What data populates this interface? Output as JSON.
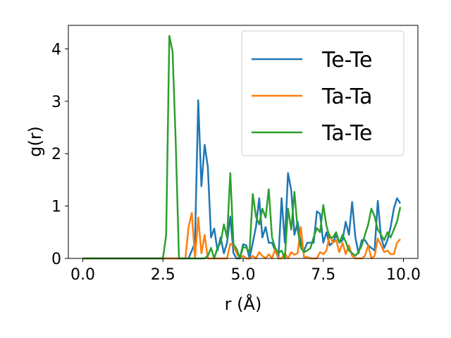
{
  "chart_data": {
    "type": "line",
    "xlabel": "r (Å)",
    "ylabel": "g(r)",
    "xlim": [
      -0.45,
      10.45
    ],
    "ylim": [
      0,
      4.45
    ],
    "xticks": [
      "0.0",
      "2.5",
      "5.0",
      "7.5",
      "10.0"
    ],
    "yticks": [
      "0",
      "1",
      "2",
      "3",
      "4"
    ],
    "grid": false,
    "legend_position": "top-right",
    "series": [
      {
        "name": "Te-Te",
        "color": "#1f77b4",
        "points": [
          [
            0,
            0
          ],
          [
            2.5,
            0
          ],
          [
            3.3,
            0
          ],
          [
            3.5,
            0.3
          ],
          [
            3.6,
            3.02
          ],
          [
            3.7,
            1.38
          ],
          [
            3.8,
            2.17
          ],
          [
            3.9,
            1.75
          ],
          [
            4.0,
            0.4
          ],
          [
            4.1,
            0.57
          ],
          [
            4.2,
            0.15
          ],
          [
            4.3,
            0.4
          ],
          [
            4.4,
            0.1
          ],
          [
            4.5,
            0.3
          ],
          [
            4.6,
            0.8
          ],
          [
            4.7,
            0.1
          ],
          [
            4.8,
            0
          ],
          [
            4.9,
            0
          ],
          [
            5.0,
            0.27
          ],
          [
            5.1,
            0.25
          ],
          [
            5.2,
            0
          ],
          [
            5.3,
            0.3
          ],
          [
            5.4,
            0.6
          ],
          [
            5.5,
            1.15
          ],
          [
            5.6,
            0.4
          ],
          [
            5.7,
            0.6
          ],
          [
            5.8,
            0.3
          ],
          [
            5.9,
            0.3
          ],
          [
            6.0,
            0.15
          ],
          [
            6.1,
            0
          ],
          [
            6.2,
            1.15
          ],
          [
            6.3,
            0.3
          ],
          [
            6.4,
            1.63
          ],
          [
            6.5,
            1.3
          ],
          [
            6.6,
            0.45
          ],
          [
            6.7,
            0.7
          ],
          [
            6.8,
            0.3
          ],
          [
            6.9,
            0.15
          ],
          [
            7.0,
            0.3
          ],
          [
            7.1,
            0.3
          ],
          [
            7.2,
            0.3
          ],
          [
            7.3,
            0.9
          ],
          [
            7.4,
            0.85
          ],
          [
            7.5,
            0.3
          ],
          [
            7.6,
            0.5
          ],
          [
            7.7,
            0.25
          ],
          [
            7.8,
            0.3
          ],
          [
            7.9,
            0.45
          ],
          [
            8.0,
            0.3
          ],
          [
            8.1,
            0.35
          ],
          [
            8.2,
            0.7
          ],
          [
            8.3,
            0.45
          ],
          [
            8.4,
            1.08
          ],
          [
            8.5,
            0.4
          ],
          [
            8.6,
            0.1
          ],
          [
            8.7,
            0.35
          ],
          [
            8.8,
            0.35
          ],
          [
            8.9,
            0.25
          ],
          [
            9.0,
            0.2
          ],
          [
            9.1,
            0.15
          ],
          [
            9.2,
            1.1
          ],
          [
            9.3,
            0.4
          ],
          [
            9.4,
            0.2
          ],
          [
            9.5,
            0.35
          ],
          [
            9.6,
            0.6
          ],
          [
            9.7,
            0.95
          ],
          [
            9.8,
            1.15
          ],
          [
            9.9,
            1.05
          ]
        ]
      },
      {
        "name": "Ta-Ta",
        "color": "#ff7f0e",
        "points": [
          [
            0,
            0
          ],
          [
            3.0,
            0
          ],
          [
            3.2,
            0
          ],
          [
            3.3,
            0.6
          ],
          [
            3.4,
            0.87
          ],
          [
            3.5,
            0
          ],
          [
            3.6,
            0.78
          ],
          [
            3.7,
            0.1
          ],
          [
            3.8,
            0.45
          ],
          [
            3.9,
            0
          ],
          [
            4.0,
            0
          ],
          [
            4.5,
            0
          ],
          [
            4.6,
            0.28
          ],
          [
            4.7,
            0.25
          ],
          [
            4.8,
            0.1
          ],
          [
            4.9,
            0
          ],
          [
            5.0,
            0.05
          ],
          [
            5.1,
            0
          ],
          [
            5.2,
            0
          ],
          [
            5.3,
            0.05
          ],
          [
            5.4,
            0
          ],
          [
            5.5,
            0.12
          ],
          [
            5.6,
            0.05
          ],
          [
            5.7,
            0
          ],
          [
            5.8,
            0.08
          ],
          [
            5.9,
            0
          ],
          [
            6.0,
            0.18
          ],
          [
            6.1,
            0
          ],
          [
            6.2,
            0
          ],
          [
            6.3,
            0.1
          ],
          [
            6.4,
            0
          ],
          [
            6.5,
            0.12
          ],
          [
            6.6,
            0.07
          ],
          [
            6.7,
            0.1
          ],
          [
            6.8,
            0.6
          ],
          [
            6.9,
            0.02
          ],
          [
            7.0,
            0.03
          ],
          [
            7.1,
            0
          ],
          [
            7.3,
            0
          ],
          [
            7.4,
            0.12
          ],
          [
            7.5,
            0.08
          ],
          [
            7.6,
            0.15
          ],
          [
            7.7,
            0.45
          ],
          [
            7.8,
            0.3
          ],
          [
            7.9,
            0.35
          ],
          [
            8.0,
            0.12
          ],
          [
            8.1,
            0.3
          ],
          [
            8.2,
            0.08
          ],
          [
            8.3,
            0.25
          ],
          [
            8.4,
            0.05
          ],
          [
            8.5,
            0
          ],
          [
            8.6,
            0
          ],
          [
            8.7,
            0
          ],
          [
            8.8,
            0.05
          ],
          [
            8.9,
            0.25
          ],
          [
            9.0,
            0
          ],
          [
            9.1,
            0.05
          ],
          [
            9.2,
            0.38
          ],
          [
            9.3,
            0.25
          ],
          [
            9.4,
            0.12
          ],
          [
            9.5,
            0.15
          ],
          [
            9.6,
            0.08
          ],
          [
            9.7,
            0.08
          ],
          [
            9.8,
            0.3
          ],
          [
            9.9,
            0.37
          ]
        ]
      },
      {
        "name": "Ta-Te",
        "color": "#2ca02c",
        "points": [
          [
            0,
            0
          ],
          [
            2.5,
            0
          ],
          [
            2.6,
            0.45
          ],
          [
            2.7,
            4.25
          ],
          [
            2.8,
            3.95
          ],
          [
            2.9,
            2.2
          ],
          [
            3.0,
            0
          ],
          [
            3.1,
            0
          ],
          [
            3.8,
            0
          ],
          [
            3.9,
            0.05
          ],
          [
            4.0,
            0.2
          ],
          [
            4.1,
            0
          ],
          [
            4.2,
            0.2
          ],
          [
            4.3,
            0.3
          ],
          [
            4.4,
            0.65
          ],
          [
            4.5,
            0.4
          ],
          [
            4.6,
            1.63
          ],
          [
            4.7,
            0.27
          ],
          [
            4.8,
            0.18
          ],
          [
            4.9,
            0
          ],
          [
            5.0,
            0.22
          ],
          [
            5.1,
            0.2
          ],
          [
            5.2,
            0.12
          ],
          [
            5.3,
            1.23
          ],
          [
            5.4,
            0.8
          ],
          [
            5.5,
            0.65
          ],
          [
            5.6,
            0.95
          ],
          [
            5.7,
            0.78
          ],
          [
            5.8,
            1.32
          ],
          [
            5.9,
            0.4
          ],
          [
            6.0,
            0.2
          ],
          [
            6.1,
            0.1
          ],
          [
            6.2,
            0.15
          ],
          [
            6.3,
            0
          ],
          [
            6.4,
            0.95
          ],
          [
            6.5,
            0.55
          ],
          [
            6.6,
            1.27
          ],
          [
            6.7,
            0.55
          ],
          [
            6.8,
            0.2
          ],
          [
            6.9,
            0.12
          ],
          [
            7.0,
            0.15
          ],
          [
            7.1,
            0.2
          ],
          [
            7.2,
            0.4
          ],
          [
            7.3,
            0.58
          ],
          [
            7.4,
            0.5
          ],
          [
            7.5,
            1.02
          ],
          [
            7.6,
            0.62
          ],
          [
            7.7,
            0.4
          ],
          [
            7.8,
            0.4
          ],
          [
            7.9,
            0.5
          ],
          [
            8.0,
            0.3
          ],
          [
            8.1,
            0.45
          ],
          [
            8.2,
            0.32
          ],
          [
            8.3,
            0.15
          ],
          [
            8.4,
            0.1
          ],
          [
            8.5,
            0.05
          ],
          [
            8.6,
            0.12
          ],
          [
            8.7,
            0.25
          ],
          [
            8.8,
            0.45
          ],
          [
            8.9,
            0.65
          ],
          [
            9.0,
            0.95
          ],
          [
            9.1,
            0.8
          ],
          [
            9.2,
            0.55
          ],
          [
            9.3,
            0.45
          ],
          [
            9.4,
            0.35
          ],
          [
            9.5,
            0.5
          ],
          [
            9.6,
            0.4
          ],
          [
            9.7,
            0.55
          ],
          [
            9.8,
            0.7
          ],
          [
            9.9,
            0.98
          ]
        ]
      }
    ]
  }
}
